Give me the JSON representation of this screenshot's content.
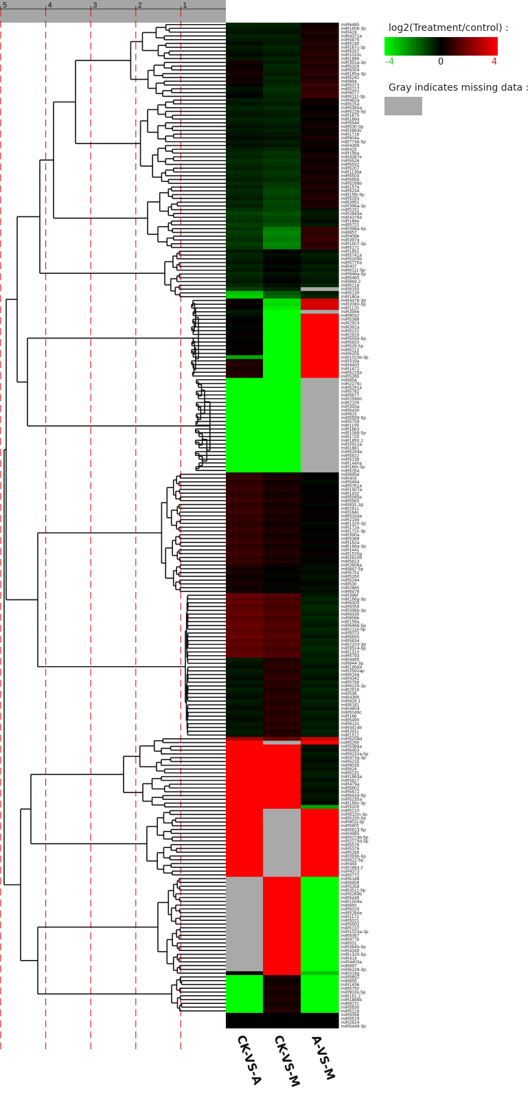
{
  "chart_data": {
    "type": "heatmap",
    "columns": [
      "CK-VS-A",
      "CK-VS-M",
      "A-VS-M"
    ],
    "scale_ticks": [
      5,
      4,
      3,
      2,
      1
    ],
    "legend": {
      "title": "log2(Treatment/control) :",
      "min_label": "-4",
      "mid_label": "0",
      "max_label": "4",
      "missing_title": "Gray indicates missing data :",
      "colors": {
        "low": "#00ff00",
        "mid": "#000000",
        "high": "#ff0000",
        "missing": "#a9a9a9"
      }
    },
    "rows": [
      "miR6485",
      "miR160b-3p",
      "miR419",
      "miR4371a",
      "miR5875",
      "miR5245",
      "miR167c-3p",
      "miR5337",
      "miR1020c",
      "miR1886",
      "miR391a-3p",
      "miR5328",
      "miR5054",
      "miR165a-3p",
      "miR5242",
      "miR894",
      "miR5373",
      "miR5227",
      "miR6077",
      "miR6111-3p",
      "miR482a",
      "miR5154",
      "miR5380a",
      "miR6226-5p",
      "miR1675",
      "miR168a",
      "miR5544",
      "miR530-3p",
      "miR2863c",
      "miR171b",
      "miR904a",
      "miR774b-5p",
      "miR4399",
      "miR415",
      "miR156a",
      "miR4387e",
      "miR5526",
      "miR5532",
      "miR5207",
      "miR1135a",
      "miR5503",
      "miR5658",
      "miR5298b",
      "miR157a",
      "miR5234",
      "miR156i-5p",
      "miR5293",
      "miR3951",
      "miR396a-3p",
      "miR5151",
      "miR2643a",
      "miR4376a",
      "miR166e",
      "miR5721",
      "miR398a-5p",
      "miR857",
      "miR408b",
      "miR397a",
      "miR1507-3p",
      "miR5171",
      "miR1651",
      "miR5741a",
      "miR5205b",
      "miR5770a",
      "miR437",
      "miR6111-5p",
      "miR946a-5p",
      "miR6460",
      "miR869.2",
      "miR5218",
      "miR8155",
      "miR5139",
      "miR160a",
      "miR447b-3p",
      "miR2080-5p",
      "miR1120",
      "miR3946",
      "miR9032",
      "miR5386",
      "miR2923",
      "miR391a",
      "miR5221",
      "miR2616",
      "miR5558-5p",
      "miR5820",
      "miR529-5p",
      "miR6113",
      "miR6205",
      "miR1023b-3p",
      "miR319a",
      "miR4400",
      "miR1872",
      "miR5225a",
      "miR5265",
      "miR854",
      "miR2275c",
      "miR5291a",
      "miR5782",
      "miR5677",
      "miR2590h",
      "miR2105",
      "miR393a",
      "miR6430",
      "miR823",
      "miR5559-5p",
      "miR5759",
      "miR1109",
      "miR1863",
      "miR1088-5p",
      "miR1720",
      "miR1850.1",
      "miR2912a",
      "miR1881",
      "miR5294a",
      "miR5822",
      "miR5138",
      "miR1440a",
      "miR169r-5p",
      "miR5264",
      "miR845d",
      "miR403",
      "miR5494",
      "miR5761a",
      "miR1507a",
      "miR1432",
      "miR5565e",
      "miR5560",
      "miR831-3p",
      "miR2611",
      "miR164c",
      "miR5334a",
      "miR2199",
      "miR1320-3p",
      "miR172a",
      "miR172c-3p",
      "miR390a",
      "miR5368",
      "miR162a",
      "miR168a-3p",
      "miR1441",
      "miR1520g",
      "miR2610b",
      "miR5813",
      "miR2606a",
      "miR847-5p",
      "miR5751",
      "miR5260",
      "miR5244",
      "miR530",
      "miR2865",
      "miR6478",
      "miR396f",
      "miR166g-3p",
      "miR6300",
      "miR5059",
      "miR396b-3p",
      "miR6435",
      "miR858b",
      "miR159a",
      "miR6466-5p",
      "miR2118-5p",
      "miR5072",
      "miR5650",
      "miR5834",
      "miR2103-3p",
      "miR3514-5p",
      "miR1310",
      "miR5793",
      "miR4465",
      "miR844-3p",
      "miR1858a",
      "miR2592ap",
      "miR818a",
      "miR4342",
      "miR5768",
      "miR6220-3p",
      "miR2916",
      "miR536",
      "miR4395",
      "miR829.1",
      "miR6181",
      "miR4404",
      "miR5049c",
      "miR166",
      "miR5490",
      "miR812n",
      "miR4414b",
      "miR2911",
      "miR1511",
      "miR5208d",
      "miR5290",
      "miR5368a",
      "miR6453",
      "miR8232a-5p",
      "miR473a-3p",
      "miR5215",
      "miR9035",
      "miR824",
      "miR5231",
      "miR1863a",
      "miR5817",
      "miR479a",
      "miR5802",
      "miR5672",
      "miR6433-5p",
      "miR5235a",
      "miR169c-3p",
      "miR5200",
      "miR5210",
      "miR812m-3p",
      "miR5150-5p",
      "miR902j-5p",
      "miR5801",
      "miR5623-5p",
      "miR4995",
      "miR5274b-5p",
      "miR2275d-5p",
      "miR5576",
      "miR5376",
      "miR5266",
      "miR393b-5p",
      "miR822-5p",
      "miR443",
      "miR2864.2",
      "miR4373",
      "miR5772",
      "miR6186",
      "miR6406",
      "miR5258",
      "miR3511-5p",
      "miR5269b",
      "miR6449",
      "miR1509a",
      "miR850",
      "miR5029",
      "miR5284a",
      "miR1171",
      "miR5021",
      "miR5502",
      "miR5137",
      "miR1023a-3p",
      "miR5067",
      "miR477b",
      "miR531",
      "miR3640-5p",
      "miR4348",
      "miR1320-5p",
      "miR414",
      "miR4403a",
      "miR897",
      "miR6228-3p",
      "miR319g",
      "miR5652",
      "miR855",
      "miR1436",
      "miR5750",
      "miR902k-5p",
      "miR161.2",
      "miR1888b",
      "miR827c",
      "miR5830",
      "miR5218",
      "miR5056",
      "miR5519",
      "miR2614",
      "miR5449-3p"
    ],
    "values": [
      {
        "rows": [
          0,
          4
        ],
        "v": [
          -0.4,
          -0.4,
          0.4
        ]
      },
      {
        "rows": [
          5,
          9
        ],
        "v": [
          -0.3,
          -0.5,
          0.5
        ]
      },
      {
        "rows": [
          10,
          15
        ],
        "v": [
          0.3,
          -0.5,
          0.6
        ]
      },
      {
        "rows": [
          16,
          19
        ],
        "v": [
          -0.2,
          -0.7,
          0.8
        ]
      },
      {
        "rows": [
          20,
          27
        ],
        "v": [
          -0.4,
          -0.5,
          0.2
        ]
      },
      {
        "rows": [
          28,
          33
        ],
        "v": [
          -0.3,
          -0.4,
          0.2
        ]
      },
      {
        "rows": [
          34,
          42
        ],
        "v": [
          -0.6,
          -0.8,
          0.3
        ]
      },
      {
        "rows": [
          43,
          48
        ],
        "v": [
          -0.5,
          -1.0,
          0.5
        ]
      },
      {
        "rows": [
          49,
          53
        ],
        "v": [
          -0.9,
          -1.2,
          -0.3
        ]
      },
      {
        "rows": [
          54,
          59
        ],
        "v": [
          -0.8,
          -2.0,
          0.8
        ]
      },
      {
        "rows": [
          60,
          69
        ],
        "v": [
          -0.5,
          -0.1,
          -0.4
        ]
      },
      {
        "rows": [
          70,
          70
        ],
        "v": [
          -1.0,
          -0.5,
          null
        ]
      },
      {
        "rows": [
          71,
          72
        ],
        "v": [
          -3.2,
          -1.5,
          -0.5
        ]
      },
      {
        "rows": [
          73,
          75
        ],
        "v": [
          0.0,
          -3.6,
          3.3
        ]
      },
      {
        "rows": [
          76,
          76
        ],
        "v": [
          -0.5,
          -4,
          null
        ]
      },
      {
        "rows": [
          77,
          87
        ],
        "v": [
          0.0,
          -4,
          4
        ]
      },
      {
        "rows": [
          88,
          88
        ],
        "v": [
          -2.5,
          -4,
          4
        ]
      },
      {
        "rows": [
          89,
          93
        ],
        "v": [
          0.5,
          -4,
          4
        ]
      },
      {
        "rows": [
          94,
          118
        ],
        "v": [
          -4,
          -4,
          null
        ]
      },
      {
        "rows": [
          119,
          143
        ],
        "v": [
          0.8,
          0.4,
          0.0
        ]
      },
      {
        "rows": [
          144,
          150
        ],
        "v": [
          0.3,
          0.0,
          -0.2
        ]
      },
      {
        "rows": [
          151,
          167
        ],
        "v": [
          1.5,
          1.2,
          -0.5
        ]
      },
      {
        "rows": [
          168,
          188
        ],
        "v": [
          -0.3,
          0.6,
          -0.4
        ]
      },
      {
        "rows": [
          189,
          189
        ],
        "v": [
          2.5,
          1.5,
          3.0
        ]
      },
      {
        "rows": [
          190,
          190
        ],
        "v": [
          4,
          null,
          4
        ]
      },
      {
        "rows": [
          191,
          206
        ],
        "v": [
          4,
          4,
          -0.3
        ]
      },
      {
        "rows": [
          207,
          207
        ],
        "v": [
          4,
          4,
          -2.5
        ]
      },
      {
        "rows": [
          208,
          225
        ],
        "v": [
          4,
          null,
          4
        ]
      },
      {
        "rows": [
          226,
          250
        ],
        "v": [
          null,
          4,
          -4
        ]
      },
      {
        "rows": [
          251,
          251
        ],
        "v": [
          0.0,
          4,
          -3.0
        ]
      },
      {
        "rows": [
          252,
          261
        ],
        "v": [
          -4,
          0.4,
          -4
        ]
      }
    ],
    "grid": false,
    "legend_placement": "top-right"
  }
}
